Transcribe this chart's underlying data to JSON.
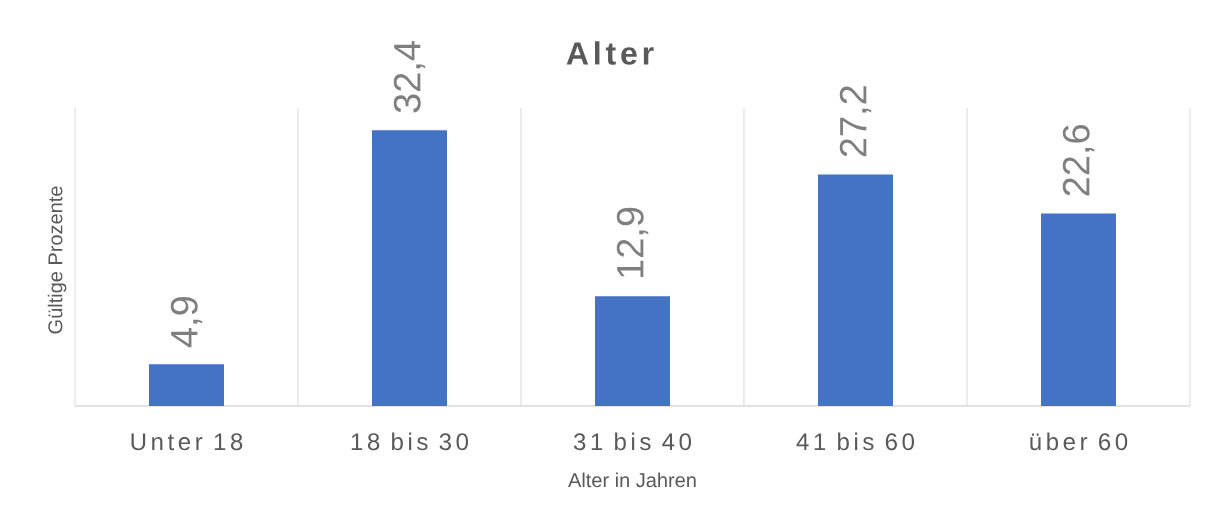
{
  "chart_data": {
    "type": "bar",
    "title": "Alter",
    "xlabel": "Alter in Jahren",
    "ylabel": "Gültige Prozente",
    "categories": [
      "Unter 18",
      "18 bis 30",
      "31 bis 40",
      "41 bis 60",
      "über 60"
    ],
    "values": [
      4.9,
      32.4,
      12.9,
      27.2,
      22.6
    ],
    "value_labels": [
      "4,9",
      "32,4",
      "12,9",
      "27,2",
      "22,6"
    ],
    "color": "#4472c4",
    "ylim": [
      0,
      35
    ],
    "grid": "x",
    "tick_labels": "x"
  }
}
